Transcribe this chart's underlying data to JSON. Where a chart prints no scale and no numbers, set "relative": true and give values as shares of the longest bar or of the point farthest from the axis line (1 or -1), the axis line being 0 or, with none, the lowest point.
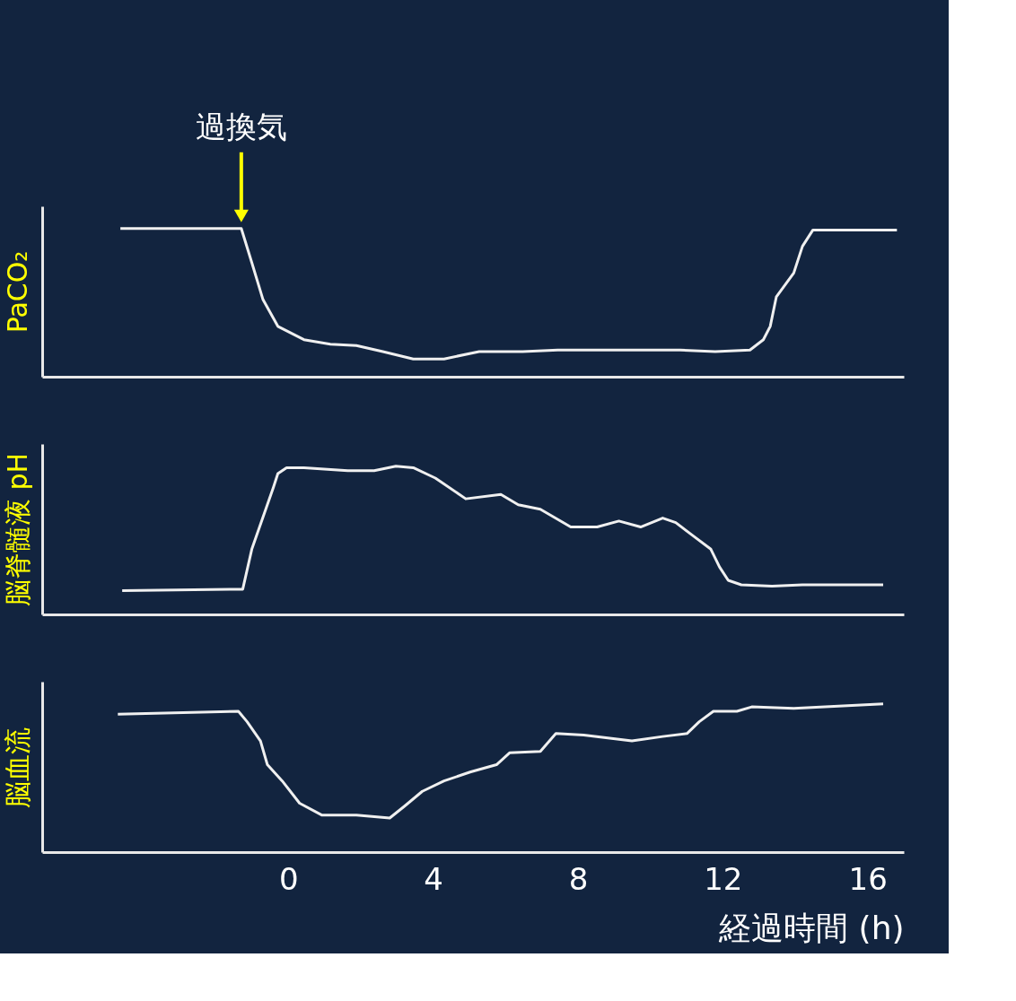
{
  "chart_data": [
    {
      "type": "line",
      "relative": true,
      "ylabel": "PaCO₂",
      "xlim": [
        -6.8,
        17
      ],
      "tick_labels": false,
      "grid": false,
      "legend": false,
      "marker": "none",
      "line_style": "solid",
      "annotations": [
        {
          "text": "過換気",
          "x": -1.3,
          "y": 1.0
        }
      ],
      "series": [
        {
          "color": "#f0f0f0",
          "x": [
            -4.64,
            -1.3,
            -1.01,
            -0.7,
            -0.29,
            0.43,
            1.16,
            1.88,
            2.61,
            3.45,
            4.3,
            5.27,
            6.47,
            7.44,
            8.65,
            10.82,
            11.79,
            12.75,
            13.12,
            13.31,
            13.48,
            13.96,
            14.2,
            14.49,
            16.81
          ],
          "values": [
            1.0,
            1.0,
            0.77,
            0.52,
            0.34,
            0.25,
            0.22,
            0.21,
            0.17,
            0.12,
            0.12,
            0.17,
            0.17,
            0.18,
            0.18,
            0.18,
            0.17,
            0.18,
            0.25,
            0.34,
            0.54,
            0.7,
            0.88,
            0.99,
            0.99
          ]
        }
      ]
    },
    {
      "type": "line",
      "relative": true,
      "ylabel": "脳脊髄液 pH",
      "xlim": [
        -6.8,
        17
      ],
      "tick_labels": false,
      "grid": false,
      "legend": false,
      "marker": "none",
      "line_style": "solid",
      "series": [
        {
          "color": "#f0f0f0",
          "x": [
            -4.59,
            -1.26,
            -1.01,
            -0.41,
            -0.29,
            -0.05,
            0.43,
            1.64,
            2.37,
            2.97,
            3.45,
            4.06,
            4.9,
            5.87,
            6.35,
            6.96,
            7.8,
            8.53,
            9.13,
            9.73,
            10.34,
            10.7,
            11.18,
            11.67,
            11.91,
            12.15,
            12.51,
            13.36,
            14.2,
            15.41,
            16.43
          ],
          "values": [
            0.16,
            0.17,
            0.44,
            0.86,
            0.95,
            0.99,
            0.99,
            0.97,
            0.97,
            1.0,
            0.99,
            0.92,
            0.78,
            0.81,
            0.74,
            0.71,
            0.59,
            0.59,
            0.63,
            0.59,
            0.65,
            0.62,
            0.53,
            0.44,
            0.32,
            0.23,
            0.2,
            0.19,
            0.2,
            0.2,
            0.2
          ]
        }
      ]
    },
    {
      "type": "line",
      "relative": true,
      "ylabel": "脳血流",
      "xlabel": "経過時間 (h)",
      "xlim": [
        -6.8,
        17
      ],
      "xticks": [
        0,
        4,
        8,
        12,
        16
      ],
      "tick_labels": "x",
      "grid": false,
      "legend": false,
      "marker": "none",
      "line_style": "solid",
      "series": [
        {
          "color": "#f0f0f0",
          "x": [
            -4.71,
            -1.38,
            -1.14,
            -0.77,
            -0.58,
            -0.17,
            0.31,
            0.92,
            1.88,
            2.8,
            3.21,
            3.7,
            4.3,
            5.02,
            5.75,
            6.11,
            6.96,
            7.39,
            8.16,
            9.49,
            10.34,
            11.01,
            11.35,
            11.74,
            12.39,
            12.8,
            13.96,
            16.43
          ],
          "values": [
            0.93,
            0.95,
            0.88,
            0.75,
            0.59,
            0.48,
            0.33,
            0.25,
            0.25,
            0.23,
            0.31,
            0.41,
            0.48,
            0.54,
            0.59,
            0.67,
            0.68,
            0.8,
            0.79,
            0.75,
            0.78,
            0.8,
            0.88,
            0.95,
            0.95,
            0.98,
            0.97,
            1.0
          ]
        }
      ]
    }
  ]
}
